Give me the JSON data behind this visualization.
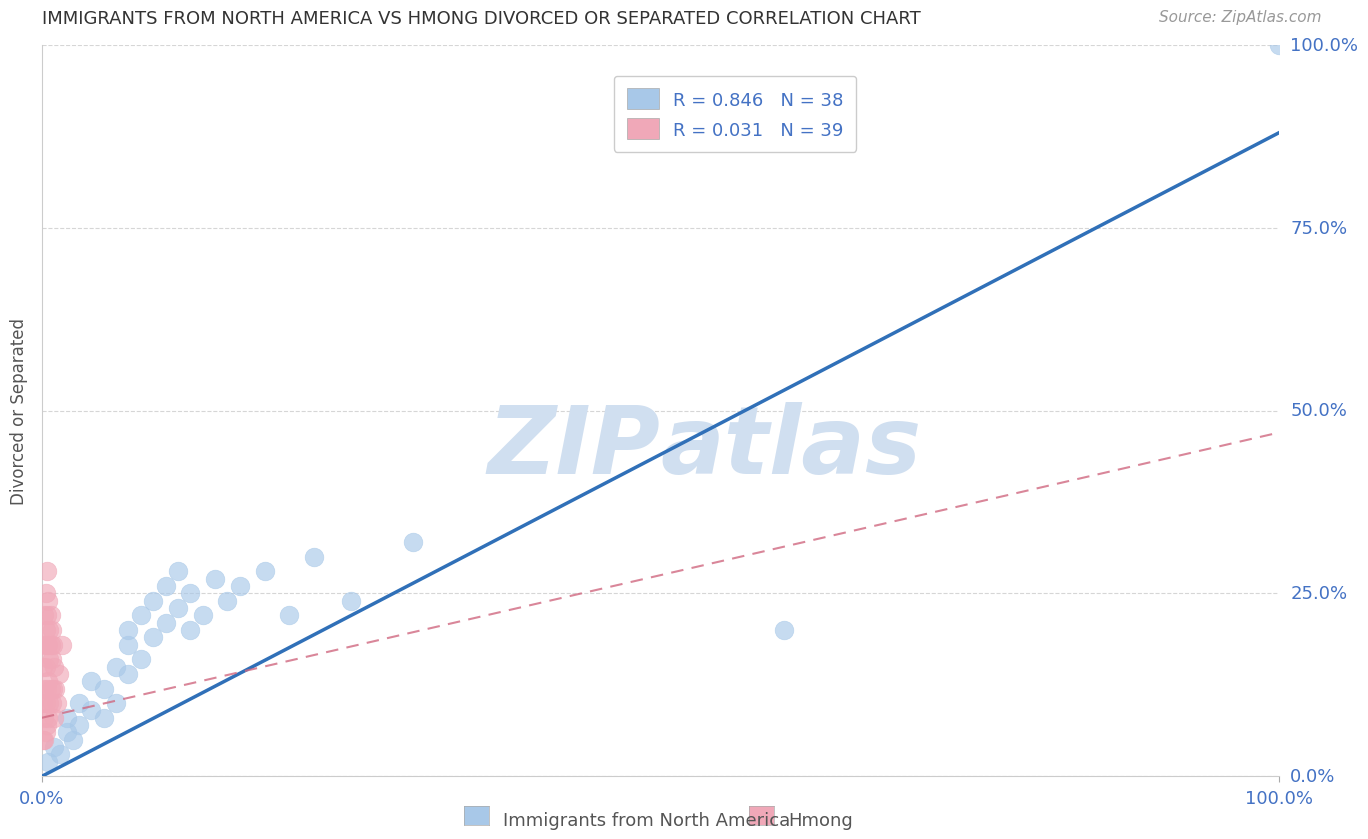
{
  "title": "IMMIGRANTS FROM NORTH AMERICA VS HMONG DIVORCED OR SEPARATED CORRELATION CHART",
  "source": "Source: ZipAtlas.com",
  "ylabel": "Divorced or Separated",
  "legend_label1": "Immigrants from North America",
  "legend_label2": "Hmong",
  "R1": 0.846,
  "N1": 38,
  "R2": 0.031,
  "N2": 39,
  "blue_color": "#a8c8e8",
  "blue_line_color": "#3070b8",
  "pink_color": "#f0a8b8",
  "pink_line_color": "#d06880",
  "watermark_color": "#d0dff0",
  "xlim": [
    0,
    1.0
  ],
  "ylim": [
    0,
    1.0
  ],
  "right_ytick_labels": [
    "0.0%",
    "25.0%",
    "50.0%",
    "75.0%",
    "100.0%"
  ],
  "right_ytick_positions": [
    0.0,
    0.25,
    0.5,
    0.75,
    1.0
  ],
  "xtick_labels": [
    "0.0%",
    "100.0%"
  ],
  "xtick_positions": [
    0.0,
    1.0
  ],
  "grid_color": "#cccccc",
  "background_color": "#ffffff",
  "title_color": "#333333",
  "axis_label_color": "#555555",
  "tick_color": "#4472c4",
  "blue_scatter_x": [
    0.005,
    0.01,
    0.015,
    0.02,
    0.02,
    0.025,
    0.03,
    0.03,
    0.04,
    0.04,
    0.05,
    0.05,
    0.06,
    0.06,
    0.07,
    0.07,
    0.07,
    0.08,
    0.08,
    0.09,
    0.09,
    0.1,
    0.1,
    0.11,
    0.11,
    0.12,
    0.12,
    0.13,
    0.14,
    0.15,
    0.16,
    0.18,
    0.2,
    0.22,
    0.25,
    0.3,
    0.6,
    1.0
  ],
  "blue_scatter_y": [
    0.02,
    0.04,
    0.03,
    0.06,
    0.08,
    0.05,
    0.07,
    0.1,
    0.09,
    0.13,
    0.12,
    0.08,
    0.15,
    0.1,
    0.18,
    0.14,
    0.2,
    0.16,
    0.22,
    0.19,
    0.24,
    0.21,
    0.26,
    0.23,
    0.28,
    0.2,
    0.25,
    0.22,
    0.27,
    0.24,
    0.26,
    0.28,
    0.22,
    0.3,
    0.24,
    0.32,
    0.2,
    1.0
  ],
  "pink_scatter_x": [
    0.001,
    0.001,
    0.001,
    0.002,
    0.002,
    0.002,
    0.002,
    0.002,
    0.003,
    0.003,
    0.003,
    0.003,
    0.003,
    0.004,
    0.004,
    0.004,
    0.004,
    0.004,
    0.005,
    0.005,
    0.005,
    0.005,
    0.006,
    0.006,
    0.006,
    0.007,
    0.007,
    0.007,
    0.008,
    0.008,
    0.008,
    0.009,
    0.009,
    0.01,
    0.01,
    0.011,
    0.012,
    0.014,
    0.016
  ],
  "pink_scatter_y": [
    0.05,
    0.1,
    0.15,
    0.05,
    0.08,
    0.12,
    0.18,
    0.22,
    0.06,
    0.1,
    0.15,
    0.2,
    0.25,
    0.07,
    0.12,
    0.18,
    0.22,
    0.28,
    0.08,
    0.13,
    0.18,
    0.24,
    0.1,
    0.16,
    0.2,
    0.12,
    0.18,
    0.22,
    0.1,
    0.16,
    0.2,
    0.12,
    0.18,
    0.08,
    0.15,
    0.12,
    0.1,
    0.14,
    0.18
  ],
  "blue_line_x0": 0.0,
  "blue_line_y0": 0.0,
  "blue_line_x1": 1.0,
  "blue_line_y1": 0.88,
  "pink_line_x0": 0.0,
  "pink_line_y0": 0.08,
  "pink_line_x1": 1.0,
  "pink_line_y1": 0.47
}
